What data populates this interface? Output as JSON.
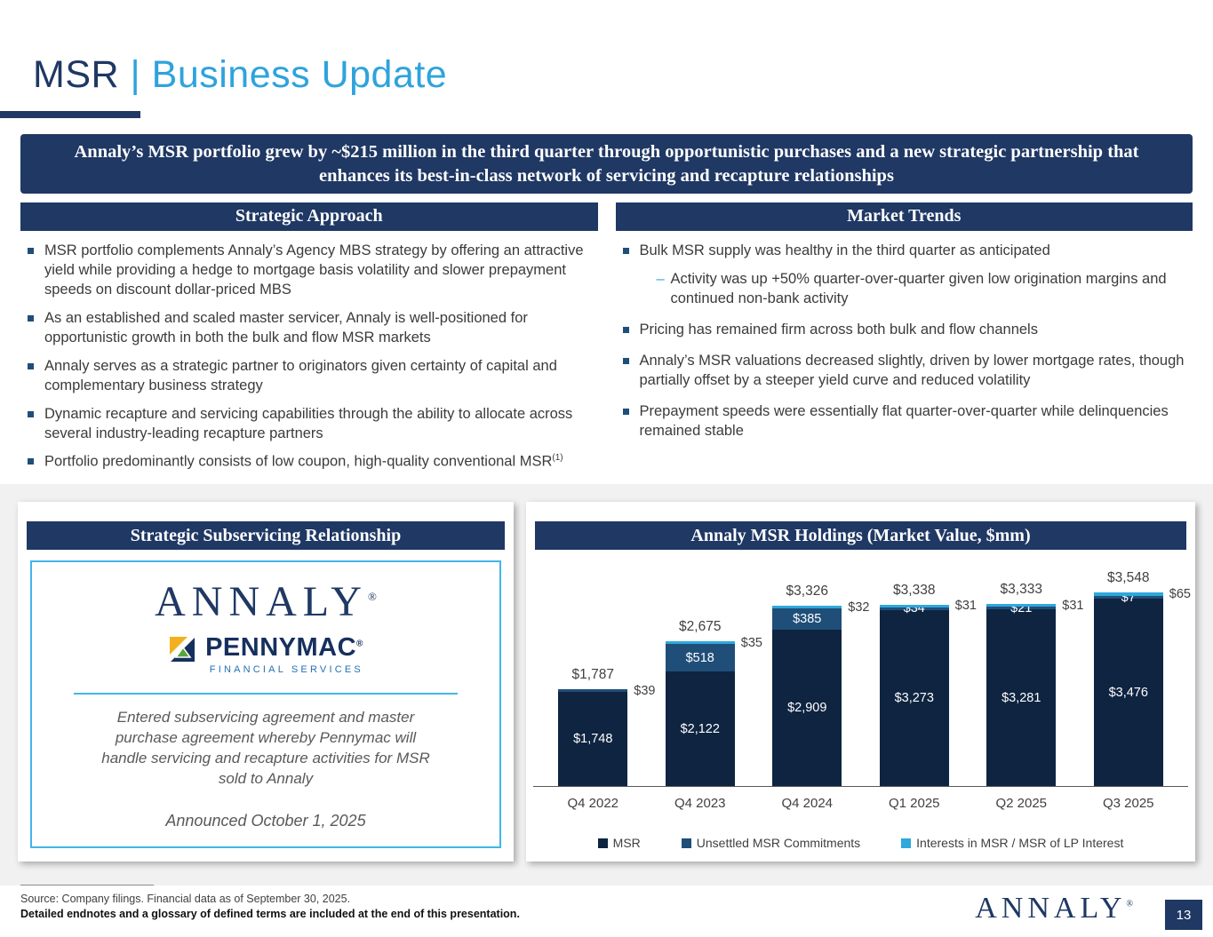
{
  "header": {
    "title_primary": "MSR",
    "title_separator": " | ",
    "title_secondary": "Business Update"
  },
  "banner": {
    "text": "Annaly’s MSR portfolio grew by ~$215 million in the third quarter through opportunistic purchases and a new strategic partnership that enhances its best-in-class network of servicing and recapture relationships"
  },
  "strategic_approach": {
    "header": "Strategic Approach",
    "items": [
      {
        "text": "MSR portfolio complements Annaly’s Agency MBS strategy by offering an attractive yield while providing a hedge to mortgage basis volatility and slower prepayment speeds on discount dollar-priced MBS"
      },
      {
        "text": "As an established and scaled master servicer, Annaly is well-positioned for opportunistic growth in both the bulk and flow MSR markets"
      },
      {
        "text": "Annaly serves as a strategic partner to originators given certainty of capital and complementary business strategy"
      },
      {
        "text": "Dynamic recapture and servicing capabilities through the ability to allocate across several industry-leading recapture partners"
      },
      {
        "text": "Portfolio predominantly consists of low coupon, high-quality conventional MSR",
        "superscript": "(1)"
      }
    ]
  },
  "market_trends": {
    "header": "Market Trends",
    "items": [
      {
        "text": "Bulk MSR supply was healthy in the third quarter as anticipated",
        "sub_items": [
          "Activity was up +50% quarter-over-quarter given low origination margins and continued non-bank activity"
        ]
      },
      {
        "text": "Pricing has remained firm across both bulk and flow channels"
      },
      {
        "text": "Annaly’s MSR valuations decreased slightly, driven by lower mortgage rates, though partially offset by a steeper yield curve and reduced volatility"
      },
      {
        "text": "Prepayment speeds were essentially flat quarter-over-quarter while delinquencies remained stable"
      }
    ]
  },
  "subservicing_card": {
    "header": "Strategic Subservicing Relationship",
    "annaly_logo_text": "ANNALY",
    "annaly_logo_reg": "®",
    "pennymac_logo_text": "PENNYMAC",
    "pennymac_logo_reg": "®",
    "pennymac_logo_subtext": "FINANCIAL SERVICES",
    "description": "Entered subservicing agreement and master purchase agreement whereby Pennymac will handle servicing and recapture activities for MSR sold to Annaly",
    "announcement": "Announced October 1, 2025"
  },
  "holdings_card": {
    "header": "Annaly MSR Holdings (Market Value, $mm)"
  },
  "chart_data": {
    "type": "bar",
    "stacked": true,
    "title": "Annaly MSR Holdings (Market Value, $mm)",
    "categories": [
      "Q4 2022",
      "Q4 2023",
      "Q4 2024",
      "Q1 2025",
      "Q2 2025",
      "Q3 2025"
    ],
    "series": [
      {
        "name": "MSR",
        "color": "#0E2440",
        "values": [
          1748,
          2122,
          2909,
          3273,
          3281,
          3476
        ],
        "labels": [
          "$1,748",
          "$2,122",
          "$2,909",
          "$3,273",
          "$3,281",
          "$3,476"
        ],
        "label_position": "inside"
      },
      {
        "name": "Unsettled MSR Commitments",
        "color": "#1F4E79",
        "values": [
          39,
          518,
          385,
          34,
          21,
          7
        ],
        "labels": [
          "$39",
          "$518",
          "$385",
          "$34",
          "$21",
          "$7"
        ],
        "label_positions": [
          "right",
          "inside",
          "inside",
          "inside",
          "inside",
          "inside"
        ]
      },
      {
        "name": "Interests in MSR / MSR of LP Interest",
        "color": "#2FA8DC",
        "values": [
          0,
          35,
          32,
          31,
          31,
          65
        ],
        "labels": [
          null,
          "$35",
          "$32",
          "$31",
          "$31",
          "$65"
        ],
        "label_position": "right"
      }
    ],
    "totals": [
      1787,
      2675,
      3326,
      3338,
      3333,
      3548
    ],
    "total_labels": [
      "$1,787",
      "$2,675",
      "$3,326",
      "$3,338",
      "$3,333",
      "$3,548"
    ],
    "ylim": [
      0,
      3750
    ],
    "gridlines": false,
    "legend_position": "bottom"
  },
  "footer": {
    "source_line": "Source: Company filings. Financial data as of September 30, 2025.",
    "endnotes_line": "Detailed endnotes and a glossary of defined terms are included at the end of this presentation.",
    "logo_text": "ANNALY",
    "logo_reg": "®",
    "page_number": "13"
  }
}
